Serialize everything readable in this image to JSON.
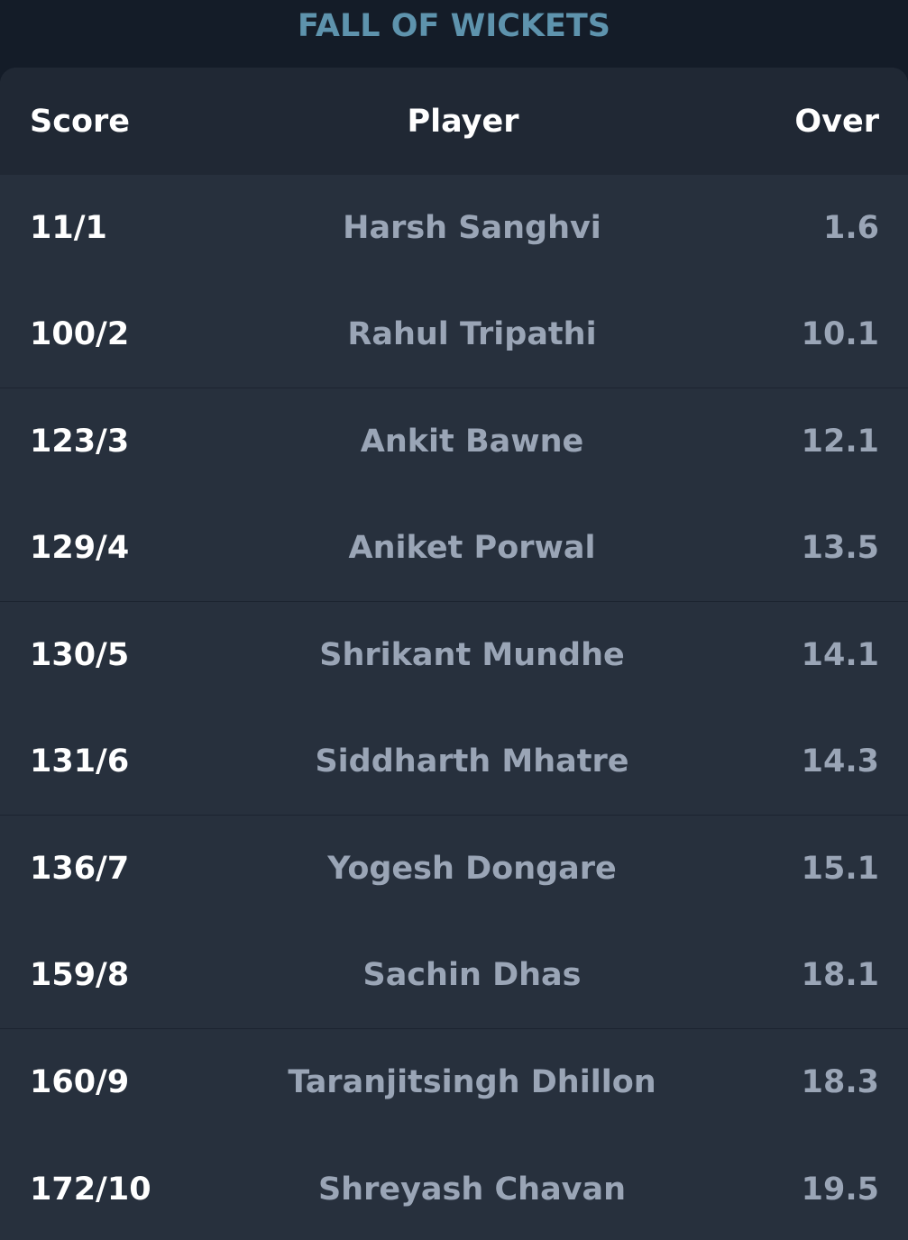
{
  "title": "FALL OF WICKETS",
  "columns": {
    "score": "Score",
    "player": "Player",
    "over": "Over"
  },
  "rows": [
    {
      "score": "11/1",
      "player": "Harsh Sanghvi",
      "over": "1.6"
    },
    {
      "score": "100/2",
      "player": "Rahul Tripathi",
      "over": "10.1"
    },
    {
      "score": "123/3",
      "player": "Ankit Bawne",
      "over": "12.1"
    },
    {
      "score": "129/4",
      "player": "Aniket Porwal",
      "over": "13.5"
    },
    {
      "score": "130/5",
      "player": "Shrikant Mundhe",
      "over": "14.1"
    },
    {
      "score": "131/6",
      "player": "Siddharth Mhatre",
      "over": "14.3"
    },
    {
      "score": "136/7",
      "player": "Yogesh Dongare",
      "over": "15.1"
    },
    {
      "score": "159/8",
      "player": "Sachin Dhas",
      "over": "18.1"
    },
    {
      "score": "160/9",
      "player": "Taranjitsingh Dhillon",
      "over": "18.3"
    },
    {
      "score": "172/10",
      "player": "Shreyash Chavan",
      "over": "19.5"
    }
  ],
  "colors": {
    "background": "#141c28",
    "card": "#27303d",
    "header": "#202834",
    "title": "#5e93ad",
    "player_text": "#9aa5b6"
  }
}
